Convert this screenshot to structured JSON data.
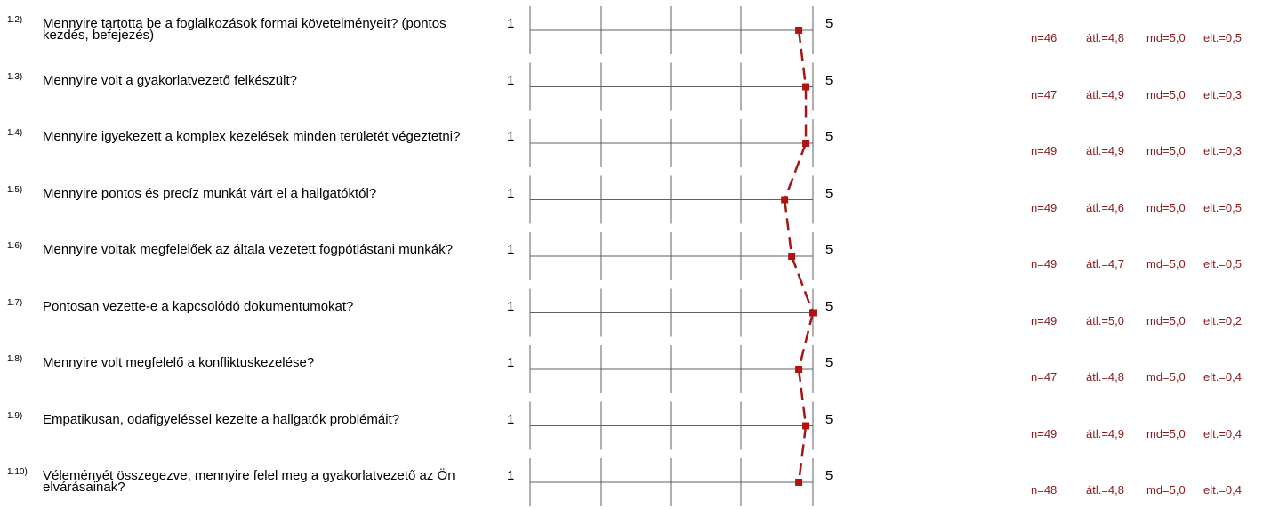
{
  "chart_data": {
    "type": "line",
    "scale": {
      "min": 1,
      "max": 5
    },
    "grid": true,
    "colors": {
      "profile_line": "#a31717",
      "marker": "#b31212",
      "stats_text": "#8b1a1a",
      "grid_line": "#606060"
    },
    "items": [
      {
        "number": "1.2)",
        "question": "Mennyire tartotta be a foglalkozások formai követelményeit? (pontos kezdés, befejezés)",
        "min_label": "1",
        "max_label": "5",
        "mean": 4.8,
        "n": "n=46",
        "mean_label": "átl.=4,8",
        "median_label": "md=5,0",
        "sd_label": "elt.=0,5"
      },
      {
        "number": "1.3)",
        "question": "Mennyire volt a gyakorlatvezető felkészült?",
        "min_label": "1",
        "max_label": "5",
        "mean": 4.9,
        "n": "n=47",
        "mean_label": "átl.=4,9",
        "median_label": "md=5,0",
        "sd_label": "elt.=0,3"
      },
      {
        "number": "1.4)",
        "question": "Mennyire igyekezett a komplex kezelések minden területét végeztetni?",
        "min_label": "1",
        "max_label": "5",
        "mean": 4.9,
        "n": "n=49",
        "mean_label": "átl.=4,9",
        "median_label": "md=5,0",
        "sd_label": "elt.=0,3"
      },
      {
        "number": "1.5)",
        "question": "Mennyire pontos és precíz munkát várt el a hallgatóktól?",
        "min_label": "1",
        "max_label": "5",
        "mean": 4.6,
        "n": "n=49",
        "mean_label": "átl.=4,6",
        "median_label": "md=5,0",
        "sd_label": "elt.=0,5"
      },
      {
        "number": "1.6)",
        "question": "Mennyire voltak megfelelőek az általa vezetett fogpótlástani munkák?",
        "min_label": "1",
        "max_label": "5",
        "mean": 4.7,
        "n": "n=49",
        "mean_label": "átl.=4,7",
        "median_label": "md=5,0",
        "sd_label": "elt.=0,5"
      },
      {
        "number": "1.7)",
        "question": "Pontosan vezette-e a  kapcsolódó dokumentumokat?",
        "min_label": "1",
        "max_label": "5",
        "mean": 5.0,
        "n": "n=49",
        "mean_label": "átl.=5,0",
        "median_label": "md=5,0",
        "sd_label": "elt.=0,2"
      },
      {
        "number": "1.8)",
        "question": "Mennyire volt megfelelő a konfliktuskezelése?",
        "min_label": "1",
        "max_label": "5",
        "mean": 4.8,
        "n": "n=47",
        "mean_label": "átl.=4,8",
        "median_label": "md=5,0",
        "sd_label": "elt.=0,4"
      },
      {
        "number": "1.9)",
        "question": "Empatikusan, odafigyeléssel kezelte a hallgatók problémáit?",
        "min_label": "1",
        "max_label": "5",
        "mean": 4.9,
        "n": "n=49",
        "mean_label": "átl.=4,9",
        "median_label": "md=5,0",
        "sd_label": "elt.=0,4"
      },
      {
        "number": "1.10)",
        "question": "Véleményét összegezve, mennyire felel meg a gyakorlatvezető az Ön elvárásainak?",
        "min_label": "1",
        "max_label": "5",
        "mean": 4.8,
        "n": "n=48",
        "mean_label": "átl.=4,8",
        "median_label": "md=5,0",
        "sd_label": "elt.=0,4"
      }
    ]
  }
}
